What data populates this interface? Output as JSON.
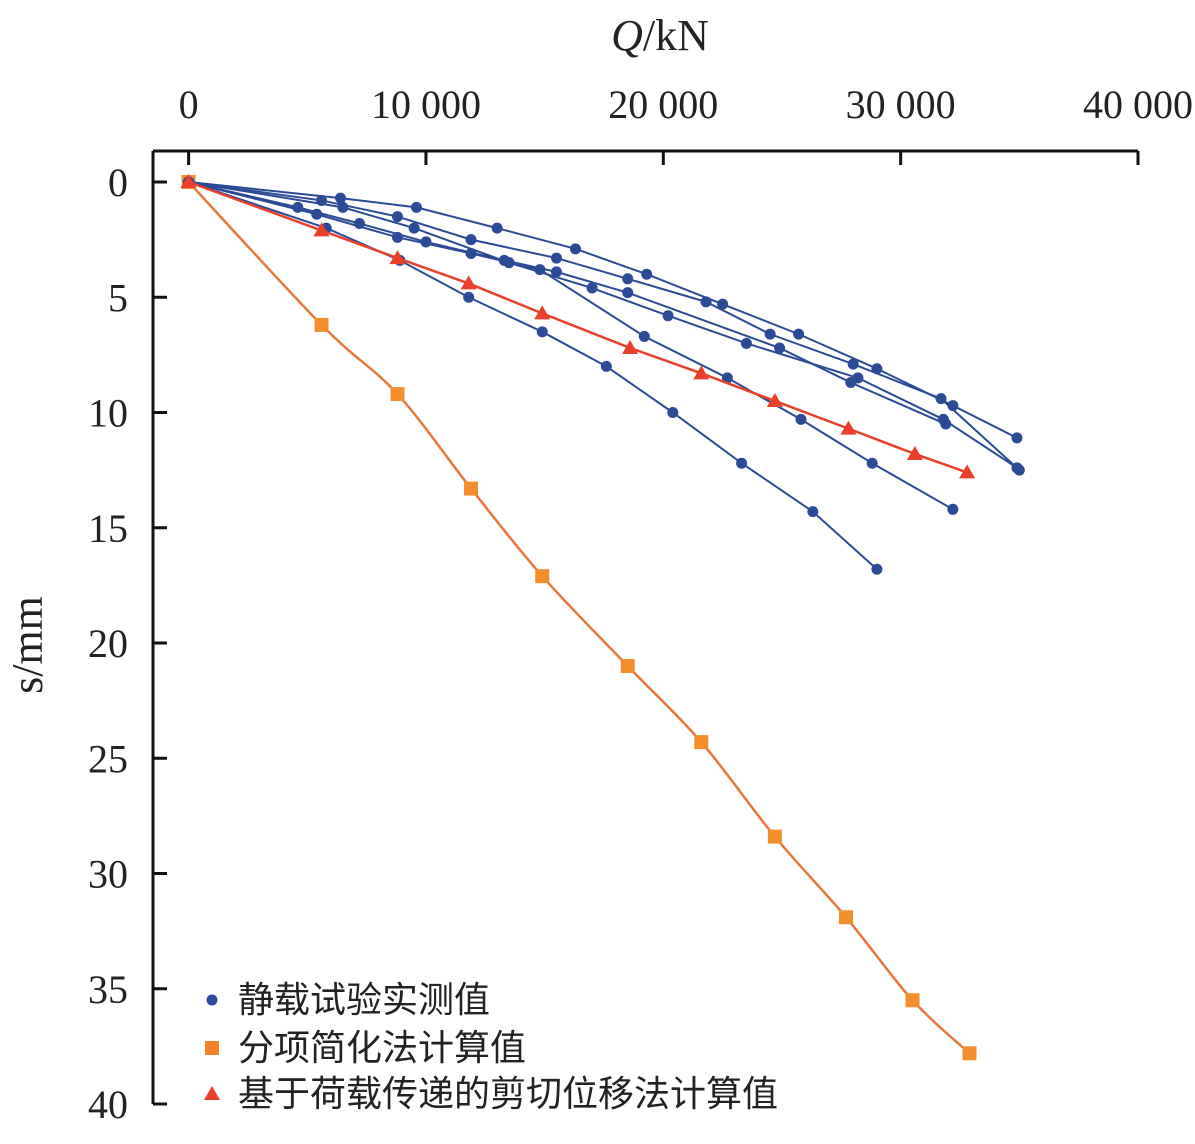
{
  "chart_data": {
    "type": "line",
    "title": "",
    "xlabel_italic": "Q",
    "xlabel_unit": "/kN",
    "ylabel": "s/mm",
    "x_axis_position": "top",
    "y_axis_inverted": true,
    "xlim": [
      -1500,
      40000
    ],
    "ylim": [
      0,
      40
    ],
    "xticks": [
      0,
      10000,
      20000,
      30000,
      40000
    ],
    "xtick_labels": [
      "0",
      "10 000",
      "20 000",
      "30 000",
      "40 000"
    ],
    "yticks": [
      0,
      5,
      10,
      15,
      20,
      25,
      30,
      35,
      40
    ],
    "ytick_labels": [
      "0",
      "5",
      "10",
      "15",
      "20",
      "25",
      "30",
      "35",
      "40"
    ],
    "grid": false,
    "legend_position": "bottom-left",
    "legend": [
      {
        "label": "静载试验实测值",
        "marker": "circle",
        "color": "#2b4b96"
      },
      {
        "label": "分项简化法计算值",
        "marker": "square",
        "color": "#f0842c"
      },
      {
        "label": "基于荷载传递的剪切位移法计算值",
        "marker": "triangle",
        "color": "#e8402a"
      }
    ],
    "series": [
      {
        "name": "静载试验实测值",
        "group": "measured",
        "color": "#2b4b96",
        "line_color": "#2b4b96",
        "marker": "circle",
        "smooth": false,
        "x": [
          0,
          6400,
          9600,
          13000,
          16300,
          19300,
          22500,
          25700,
          29000,
          32200,
          34900
        ],
        "y": [
          0,
          0.7,
          1.1,
          2.0,
          2.9,
          4.0,
          5.3,
          6.6,
          8.1,
          9.7,
          11.1
        ]
      },
      {
        "name": "静载试验实测值",
        "group": "measured",
        "color": "#2b4b96",
        "line_color": "#2b4b96",
        "marker": "circle",
        "smooth": false,
        "x": [
          0,
          5600,
          8800,
          11900,
          15500,
          18500,
          21800,
          24500,
          28000,
          31700,
          35000
        ],
        "y": [
          0,
          0.8,
          1.5,
          2.5,
          3.3,
          4.2,
          5.2,
          6.6,
          7.9,
          9.4,
          12.5
        ]
      },
      {
        "name": "静载试验实测值",
        "group": "measured",
        "color": "#2b4b96",
        "line_color": "#2b4b96",
        "marker": "circle",
        "smooth": false,
        "x": [
          0,
          6500,
          9500,
          13500,
          17000,
          20200,
          23500,
          28200,
          31800,
          34900
        ],
        "y": [
          0,
          1.1,
          2.0,
          3.5,
          4.6,
          5.8,
          7.0,
          8.5,
          10.3,
          12.4
        ]
      },
      {
        "name": "静载试验实测值",
        "group": "measured",
        "color": "#2b4b96",
        "line_color": "#2b4b96",
        "marker": "circle",
        "smooth": false,
        "x": [
          0,
          4600,
          7200,
          10000,
          13300,
          15500,
          18500,
          24900,
          27900,
          31900
        ],
        "y": [
          0,
          1.1,
          1.8,
          2.6,
          3.4,
          3.9,
          4.8,
          7.2,
          8.7,
          10.5
        ]
      },
      {
        "name": "静载试验实测值",
        "group": "measured",
        "color": "#2b4b96",
        "line_color": "#2b4b96",
        "marker": "circle",
        "smooth": false,
        "x": [
          0,
          5400,
          8800,
          11900,
          14800,
          19200,
          22700,
          25800,
          28800,
          32200
        ],
        "y": [
          0,
          1.4,
          2.4,
          3.1,
          3.8,
          6.7,
          8.5,
          10.3,
          12.2,
          14.2
        ]
      },
      {
        "name": "静载试验实测值",
        "group": "measured",
        "color": "#2b4b96",
        "line_color": "#2b4b96",
        "marker": "circle",
        "smooth": false,
        "x": [
          0,
          5800,
          8900,
          11800,
          14900,
          17600,
          20400,
          23300,
          26300,
          29000
        ],
        "y": [
          0,
          2.0,
          3.4,
          5.0,
          6.5,
          8.0,
          10.0,
          12.2,
          14.3,
          16.8
        ]
      },
      {
        "name": "分项简化法计算值",
        "group": "simplified",
        "color": "#f28f2c",
        "line_color": "#e8783a",
        "marker": "square",
        "smooth": true,
        "x": [
          0,
          5600,
          8800,
          11900,
          14900,
          18500,
          21600,
          24700,
          27700,
          30500,
          32900
        ],
        "y": [
          0,
          6.2,
          9.2,
          13.3,
          17.1,
          21.0,
          24.3,
          28.4,
          31.9,
          35.5,
          37.8
        ]
      },
      {
        "name": "基于荷载传递的剪切位移法计算值",
        "group": "shear",
        "color": "#e8402a",
        "line_color": "#e8402a",
        "marker": "triangle",
        "smooth": false,
        "x": [
          0,
          5600,
          8800,
          11800,
          14900,
          18600,
          21600,
          24700,
          27800,
          30600,
          32800
        ],
        "y": [
          0,
          2.1,
          3.3,
          4.4,
          5.7,
          7.2,
          8.3,
          9.5,
          10.7,
          11.8,
          12.6
        ]
      }
    ]
  }
}
